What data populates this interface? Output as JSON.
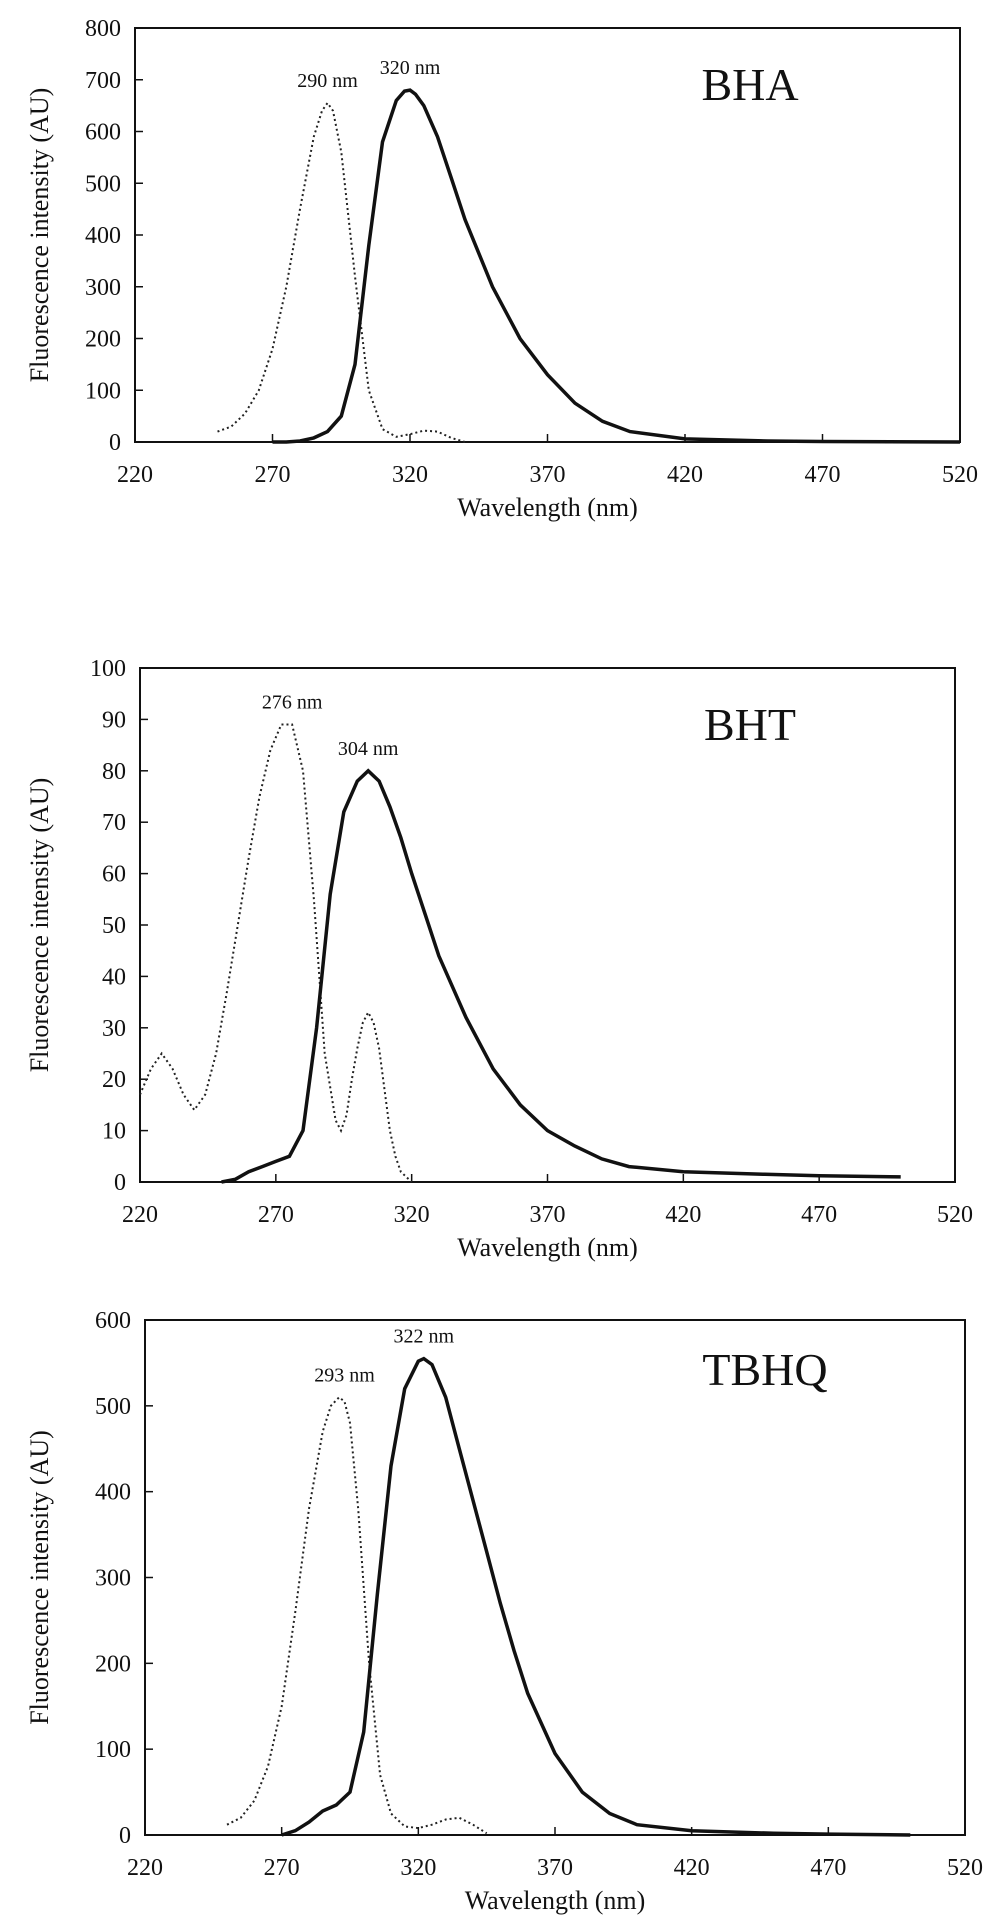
{
  "chart_data": [
    {
      "type": "line",
      "title": "BHA",
      "xlabel": "Wavelength (nm)",
      "ylabel": "Fluorescence intensity (AU)",
      "xlim": [
        220,
        520
      ],
      "ylim": [
        0,
        800
      ],
      "x_ticks": [
        "220",
        "270",
        "320",
        "370",
        "420",
        "470",
        "520"
      ],
      "y_ticks": [
        "0",
        "100",
        "200",
        "300",
        "400",
        "500",
        "600",
        "700",
        "800"
      ],
      "peak_labels": [
        {
          "text": "290 nm",
          "x": 290,
          "y": 655
        },
        {
          "text": "320 nm",
          "x": 320,
          "y": 680
        }
      ],
      "series": [
        {
          "style": "dotted",
          "x": [
            250,
            255,
            260,
            265,
            270,
            275,
            280,
            285,
            288,
            290,
            292,
            295,
            300,
            305,
            310,
            315,
            320,
            325,
            330,
            335,
            340
          ],
          "y": [
            20,
            30,
            55,
            100,
            180,
            300,
            450,
            590,
            640,
            655,
            640,
            560,
            320,
            100,
            25,
            10,
            15,
            22,
            20,
            8,
            0
          ]
        },
        {
          "style": "solid",
          "x": [
            270,
            275,
            280,
            285,
            290,
            295,
            300,
            305,
            310,
            315,
            318,
            320,
            322,
            325,
            330,
            335,
            340,
            350,
            360,
            370,
            380,
            390,
            400,
            420,
            450,
            470,
            520
          ],
          "y": [
            0,
            0,
            2,
            8,
            20,
            50,
            150,
            380,
            580,
            660,
            678,
            680,
            672,
            650,
            590,
            510,
            430,
            300,
            200,
            130,
            75,
            40,
            20,
            6,
            2,
            1,
            0
          ]
        }
      ]
    },
    {
      "type": "line",
      "title": "BHT",
      "xlabel": "Wavelength (nm)",
      "ylabel": "Fluorescence intensity (AU)",
      "xlim": [
        220,
        520
      ],
      "ylim": [
        0,
        100
      ],
      "x_ticks": [
        "220",
        "270",
        "320",
        "370",
        "420",
        "470",
        "520"
      ],
      "y_ticks": [
        "0",
        "10",
        "20",
        "30",
        "40",
        "50",
        "60",
        "70",
        "80",
        "90",
        "100"
      ],
      "peak_labels": [
        {
          "text": "276 nm",
          "x": 276,
          "y": 89
        },
        {
          "text": "304 nm",
          "x": 304,
          "y": 80
        }
      ],
      "series": [
        {
          "style": "dotted",
          "x": [
            220,
            224,
            228,
            232,
            236,
            240,
            244,
            248,
            252,
            256,
            260,
            264,
            268,
            272,
            276,
            280,
            284,
            288,
            292,
            294,
            296,
            298,
            300,
            302,
            304,
            306,
            308,
            310,
            312,
            314,
            316,
            318,
            320
          ],
          "y": [
            17,
            22,
            25,
            22,
            17,
            14,
            17,
            25,
            37,
            50,
            63,
            75,
            84,
            89,
            89,
            80,
            55,
            25,
            12,
            10,
            13,
            20,
            26,
            31,
            33,
            31,
            26,
            18,
            10,
            5,
            2,
            1,
            0
          ]
        },
        {
          "style": "solid",
          "x": [
            250,
            255,
            260,
            265,
            270,
            275,
            280,
            285,
            290,
            295,
            300,
            304,
            308,
            312,
            316,
            320,
            325,
            330,
            340,
            350,
            360,
            370,
            380,
            390,
            400,
            420,
            450,
            470,
            500
          ],
          "y": [
            0,
            0.5,
            2,
            3,
            4,
            5,
            10,
            30,
            56,
            72,
            78,
            80,
            78,
            73,
            67,
            60,
            52,
            44,
            32,
            22,
            15,
            10,
            7,
            4.5,
            3,
            2,
            1.5,
            1.2,
            1
          ]
        }
      ]
    },
    {
      "type": "line",
      "title": "TBHQ",
      "xlabel": "Wavelength (nm)",
      "ylabel": "Fluorescence intensity (AU)",
      "xlim": [
        220,
        520
      ],
      "ylim": [
        0,
        600
      ],
      "x_ticks": [
        "220",
        "270",
        "320",
        "370",
        "420",
        "470",
        "520"
      ],
      "y_ticks": [
        "0",
        "100",
        "200",
        "300",
        "400",
        "500",
        "600"
      ],
      "peak_labels": [
        {
          "text": "293 nm",
          "x": 293,
          "y": 510
        },
        {
          "text": "322 nm",
          "x": 322,
          "y": 555
        }
      ],
      "series": [
        {
          "style": "dotted",
          "x": [
            250,
            255,
            260,
            265,
            270,
            275,
            280,
            285,
            288,
            291,
            293,
            295,
            298,
            302,
            306,
            310,
            315,
            320,
            325,
            330,
            335,
            340,
            345
          ],
          "y": [
            12,
            20,
            40,
            80,
            150,
            260,
            380,
            470,
            500,
            510,
            505,
            480,
            380,
            200,
            70,
            25,
            10,
            8,
            12,
            18,
            20,
            12,
            2
          ]
        },
        {
          "style": "solid",
          "x": [
            270,
            275,
            280,
            285,
            290,
            295,
            300,
            305,
            310,
            315,
            320,
            322,
            325,
            330,
            335,
            340,
            345,
            350,
            355,
            360,
            370,
            380,
            390,
            400,
            420,
            450,
            470,
            500
          ],
          "y": [
            0,
            5,
            15,
            28,
            35,
            50,
            120,
            280,
            430,
            520,
            552,
            555,
            548,
            510,
            450,
            390,
            330,
            270,
            215,
            165,
            95,
            50,
            25,
            12,
            5,
            2,
            1,
            0
          ]
        }
      ]
    }
  ]
}
